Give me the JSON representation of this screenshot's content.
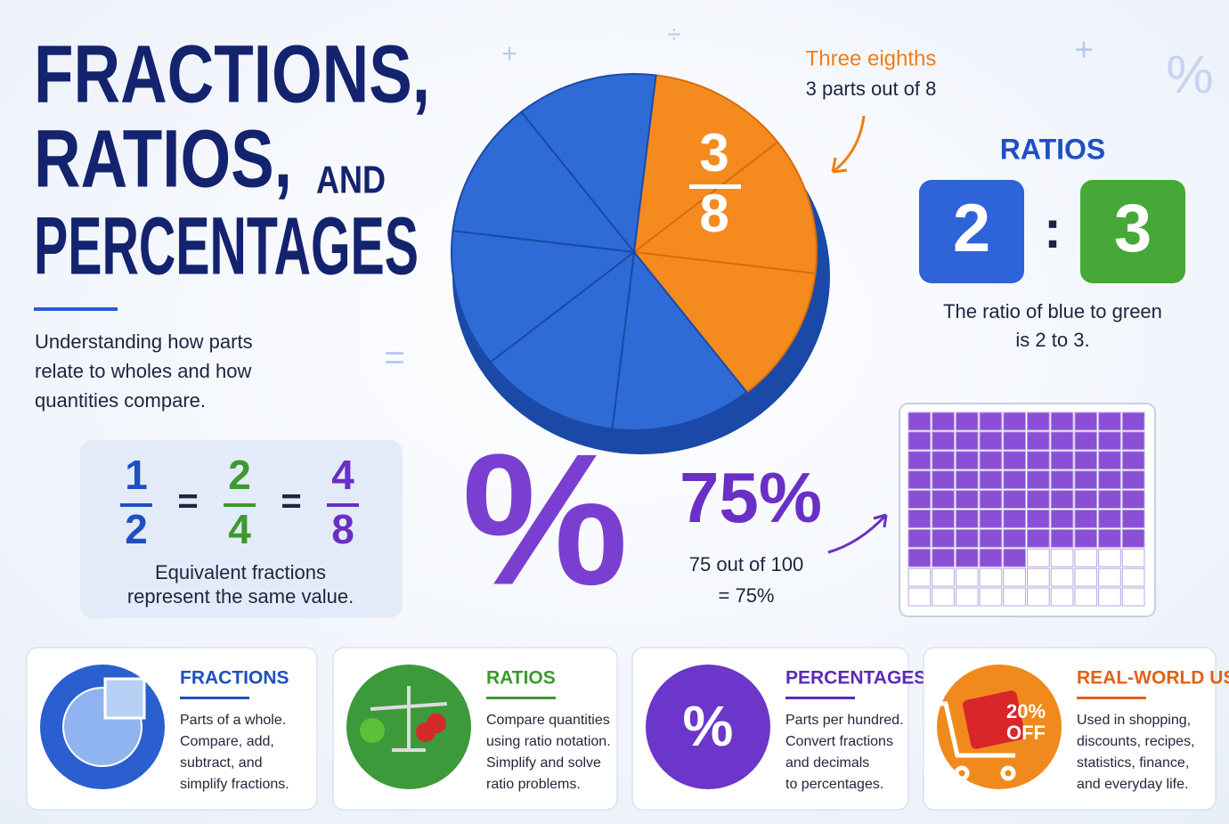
{
  "header": {
    "title_lines": [
      "FRACTIONS,",
      "RATIOS,",
      "AND",
      "PERCENTAGES"
    ],
    "subtitle_lines": [
      "Understanding how parts",
      "relate to wholes and how",
      "quantities compare."
    ]
  },
  "decorations": [
    "+",
    "÷",
    "+",
    "%",
    "="
  ],
  "equivalent": {
    "fractions": [
      {
        "numerator": "1",
        "denominator": "2"
      },
      {
        "numerator": "2",
        "denominator": "4"
      },
      {
        "numerator": "4",
        "denominator": "8"
      }
    ],
    "equals": "=",
    "caption_lines": [
      "Equivalent fractions",
      "represent the same value."
    ]
  },
  "pie": {
    "numerator": "3",
    "denominator": "8",
    "label": "Three eighths",
    "sublabel": "3 parts out of 8"
  },
  "ratio": {
    "title": "RATIOS",
    "left": "2",
    "separator": ":",
    "right": "3",
    "caption_lines": [
      "The ratio of blue to green",
      "is 2 to 3."
    ]
  },
  "percent": {
    "symbol": "%",
    "value": "75%",
    "caption_lines": [
      "75 out of 100",
      "= 75%"
    ]
  },
  "cards": [
    {
      "title": "FRACTIONS",
      "lines": [
        "Parts of a whole.",
        "Compare, add,",
        "subtract, and",
        "simplify fractions."
      ]
    },
    {
      "title": "RATIOS",
      "lines": [
        "Compare quantities",
        "using ratio notation.",
        "Simplify and solve",
        "ratio problems."
      ]
    },
    {
      "title": "PERCENTAGES",
      "icon_text": [
        "%"
      ],
      "lines": [
        "Parts per hundred.",
        "Convert fractions",
        "and decimals",
        "to percentages."
      ]
    },
    {
      "title": "REAL-WORLD USE",
      "icon_text": [
        "20%",
        "OFF"
      ],
      "lines": [
        "Used in shopping,",
        "discounts, recipes,",
        "statistics, finance,",
        "and everyday life."
      ]
    }
  ]
}
